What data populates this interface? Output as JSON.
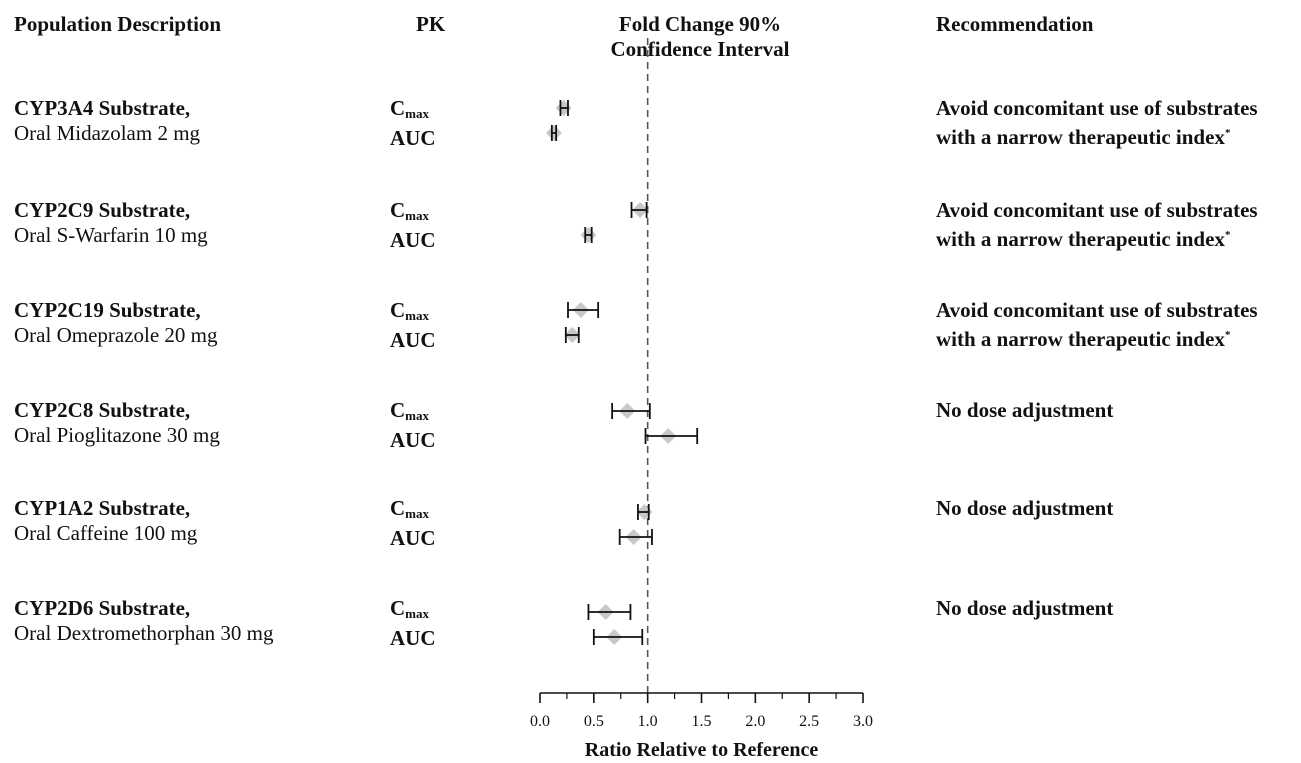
{
  "headers": {
    "population": "Population Description",
    "pk": "PK",
    "fold_change_line1": "Fold Change 90%",
    "fold_change_line2": "Confidence Interval",
    "recommendation": "Recommendation"
  },
  "rows": [
    {
      "substrate": "CYP3A4 Substrate,",
      "drug": "Oral Midazolam 2 mg",
      "cmax_label": "C",
      "cmax_sub": "max",
      "auc_label": "AUC",
      "rec_line1": "Avoid concomitant use of substrates",
      "rec_line2": "with a narrow therapeutic index",
      "rec_mark": "*"
    },
    {
      "substrate": "CYP2C9 Substrate,",
      "drug": "Oral S-Warfarin 10 mg",
      "cmax_label": "C",
      "cmax_sub": "max",
      "auc_label": "AUC",
      "rec_line1": "Avoid concomitant use of substrates",
      "rec_line2": "with a narrow therapeutic index",
      "rec_mark": "*"
    },
    {
      "substrate": "CYP2C19 Substrate,",
      "drug": "Oral Omeprazole 20 mg",
      "cmax_label": "C",
      "cmax_sub": "max",
      "auc_label": "AUC",
      "rec_line1": "Avoid concomitant use of substrates",
      "rec_line2": "with a narrow therapeutic index",
      "rec_mark": "*"
    },
    {
      "substrate": "CYP2C8 Substrate,",
      "drug": "Oral Pioglitazone 30 mg",
      "cmax_label": "C",
      "cmax_sub": "max",
      "auc_label": "AUC",
      "rec_line1": "No dose adjustment",
      "rec_line2": "",
      "rec_mark": ""
    },
    {
      "substrate": "CYP1A2 Substrate,",
      "drug": "Oral Caffeine 100 mg",
      "cmax_label": "C",
      "cmax_sub": "max",
      "auc_label": "AUC",
      "rec_line1": "No dose adjustment",
      "rec_line2": "",
      "rec_mark": ""
    },
    {
      "substrate": "CYP2D6 Substrate,",
      "drug": "Oral Dextromethorphan 30 mg",
      "cmax_label": "C",
      "cmax_sub": "max",
      "auc_label": "AUC",
      "rec_line1": "No dose adjustment",
      "rec_line2": "",
      "rec_mark": ""
    }
  ],
  "chart_data": {
    "type": "forest",
    "xlabel": "Ratio Relative to Reference",
    "xlim": [
      0.0,
      3.0
    ],
    "xticks": [
      "0.0",
      "0.5",
      "1.0",
      "1.5",
      "2.0",
      "2.5",
      "3.0"
    ],
    "reference_line": 1.0,
    "marker_color": "#c8c8c8",
    "line_color": "#111111",
    "points": [
      {
        "group": "CYP3A4 Substrate, Oral Midazolam 2 mg",
        "pk": "Cmax",
        "estimate": 0.22,
        "lower": 0.19,
        "upper": 0.26
      },
      {
        "group": "CYP3A4 Substrate, Oral Midazolam 2 mg",
        "pk": "AUC",
        "estimate": 0.13,
        "lower": 0.11,
        "upper": 0.15
      },
      {
        "group": "CYP2C9 Substrate, Oral S-Warfarin 10 mg",
        "pk": "Cmax",
        "estimate": 0.93,
        "lower": 0.85,
        "upper": 0.99
      },
      {
        "group": "CYP2C9 Substrate, Oral S-Warfarin 10 mg",
        "pk": "AUC",
        "estimate": 0.45,
        "lower": 0.42,
        "upper": 0.48
      },
      {
        "group": "CYP2C19 Substrate, Oral Omeprazole 20 mg",
        "pk": "Cmax",
        "estimate": 0.38,
        "lower": 0.26,
        "upper": 0.54
      },
      {
        "group": "CYP2C19 Substrate, Oral Omeprazole 20 mg",
        "pk": "AUC",
        "estimate": 0.3,
        "lower": 0.24,
        "upper": 0.36
      },
      {
        "group": "CYP2C8 Substrate, Oral Pioglitazone 30 mg",
        "pk": "Cmax",
        "estimate": 0.81,
        "lower": 0.67,
        "upper": 1.02
      },
      {
        "group": "CYP2C8 Substrate, Oral Pioglitazone 30 mg",
        "pk": "AUC",
        "estimate": 1.19,
        "lower": 0.98,
        "upper": 1.46
      },
      {
        "group": "CYP1A2 Substrate, Oral Caffeine 100 mg",
        "pk": "Cmax",
        "estimate": 0.97,
        "lower": 0.91,
        "upper": 1.01
      },
      {
        "group": "CYP1A2 Substrate, Oral Caffeine 100 mg",
        "pk": "AUC",
        "estimate": 0.87,
        "lower": 0.74,
        "upper": 1.04
      },
      {
        "group": "CYP2D6 Substrate, Oral Dextromethorphan 30 mg",
        "pk": "Cmax",
        "estimate": 0.61,
        "lower": 0.45,
        "upper": 0.84
      },
      {
        "group": "CYP2D6 Substrate, Oral Dextromethorphan 30 mg",
        "pk": "AUC",
        "estimate": 0.69,
        "lower": 0.5,
        "upper": 0.95
      }
    ]
  }
}
